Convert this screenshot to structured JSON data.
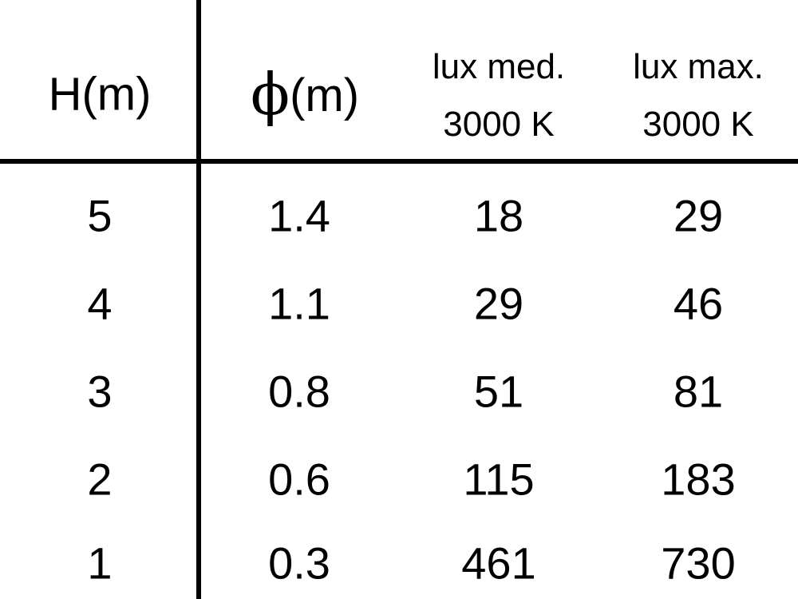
{
  "chart_data": {
    "type": "table",
    "columns": [
      {
        "label": "H(m)"
      },
      {
        "symbol": "ϕ",
        "label": "(m)"
      },
      {
        "label": "lux med.",
        "sublabel": "3000 K"
      },
      {
        "label": "lux max.",
        "sublabel": "3000 K"
      }
    ],
    "rows": [
      [
        "5",
        "1.4",
        "18",
        "29"
      ],
      [
        "4",
        "1.1",
        "29",
        "46"
      ],
      [
        "3",
        "0.8",
        "51",
        "81"
      ],
      [
        "2",
        "0.6",
        "115",
        "183"
      ],
      [
        "1",
        "0.3",
        "461",
        "730"
      ]
    ]
  }
}
